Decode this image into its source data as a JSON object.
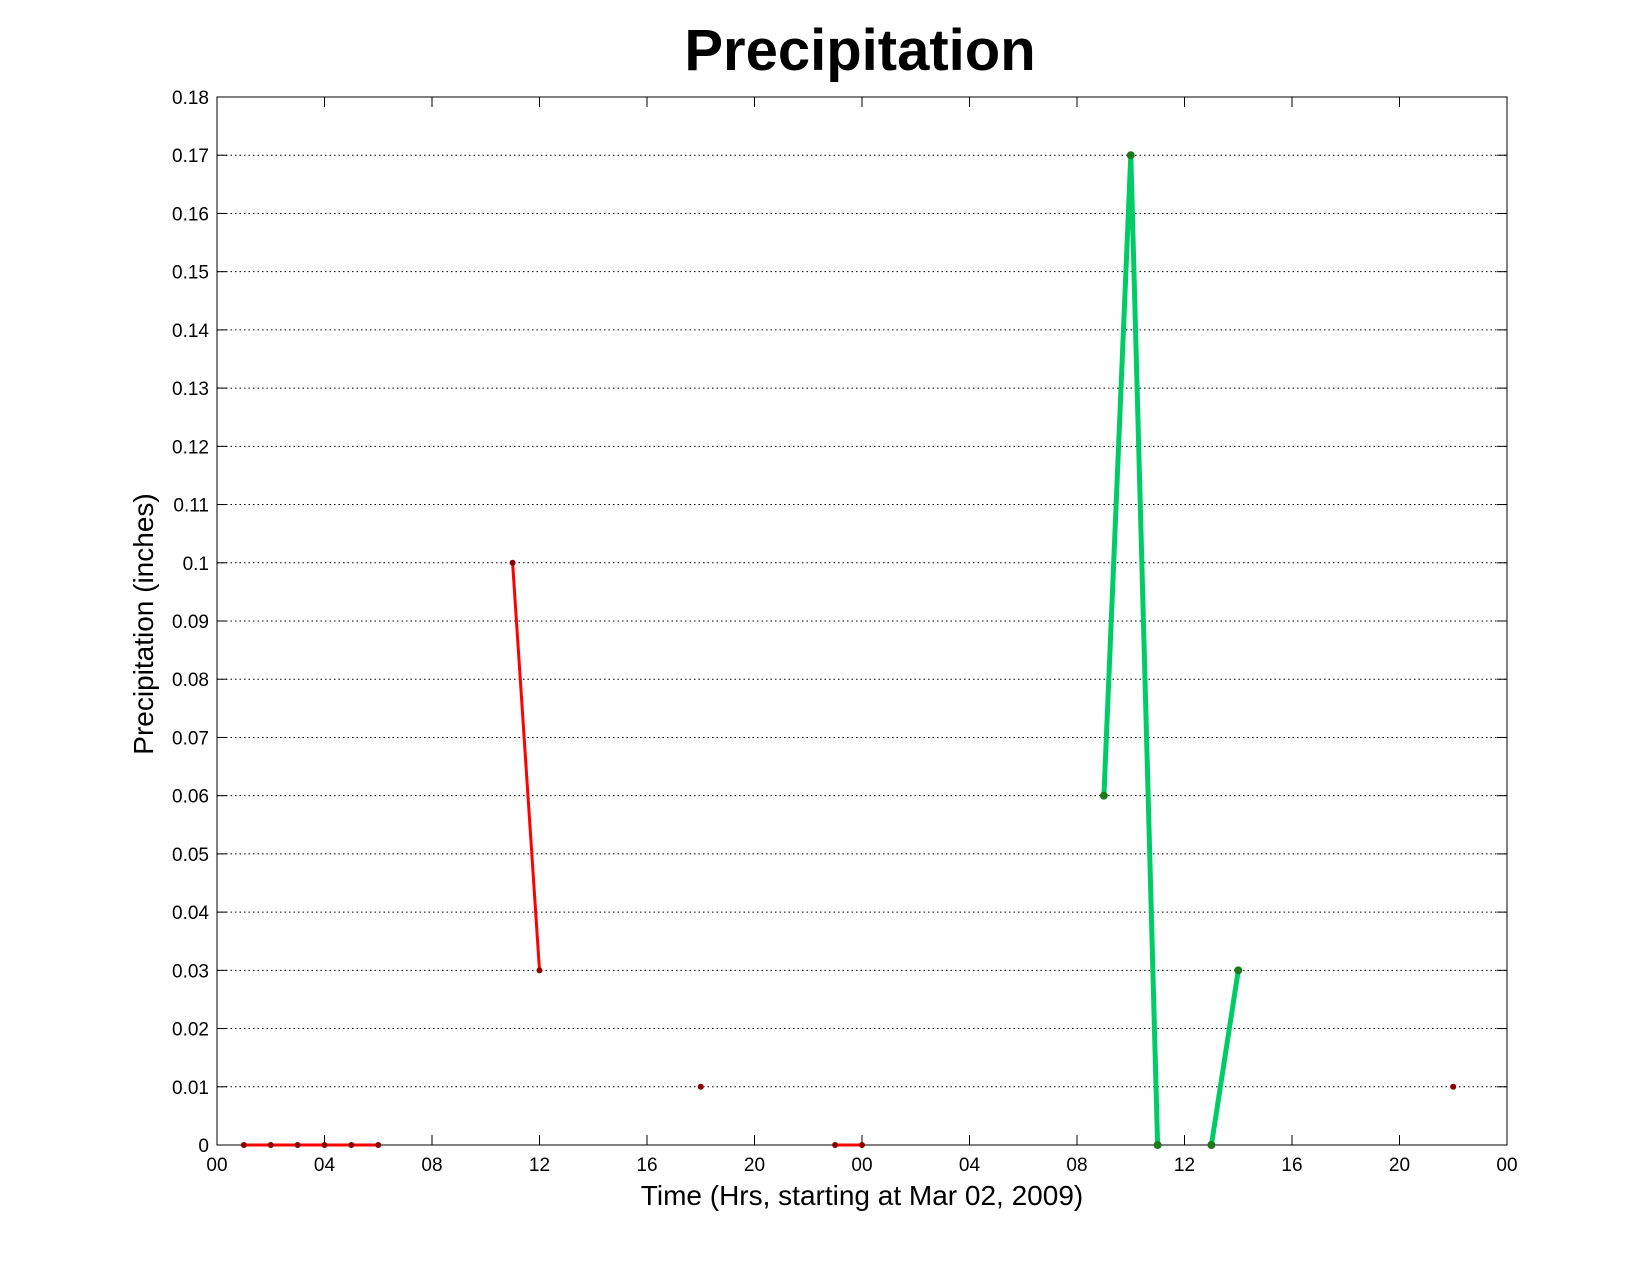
{
  "chart_data": {
    "type": "line",
    "title": "Precipitation",
    "xlabel": "Time (Hrs, starting at Mar 02, 2009)",
    "ylabel": "Precipitation (inches)",
    "xlim": [
      "2009-03-02T00:00",
      "2009-03-04T00:00"
    ],
    "ylim": [
      0,
      0.18
    ],
    "x_tick_labels": [
      "00",
      "04",
      "08",
      "12",
      "16",
      "20",
      "00",
      "04",
      "08",
      "12",
      "16",
      "20",
      "00"
    ],
    "y_tick_labels": [
      "0",
      "0.01",
      "0.02",
      "0.03",
      "0.04",
      "0.05",
      "0.06",
      "0.07",
      "0.08",
      "0.09",
      "0.1",
      "0.11",
      "0.12",
      "0.13",
      "0.14",
      "0.15",
      "0.16",
      "0.17",
      "0.18"
    ],
    "grid": "horizontal dotted",
    "series": [
      {
        "color": "#ff0000",
        "marker_color": "#8b0000",
        "segments": [
          [
            [
              "2009-03-02T01:00",
              0
            ],
            [
              "2009-03-02T02:00",
              0
            ],
            [
              "2009-03-02T03:00",
              0
            ],
            [
              "2009-03-02T04:00",
              0
            ],
            [
              "2009-03-02T05:00",
              0
            ],
            [
              "2009-03-02T06:00",
              0
            ]
          ],
          [
            [
              "2009-03-02T11:00",
              0.1
            ],
            [
              "2009-03-02T12:00",
              0.03
            ]
          ],
          [
            [
              "2009-03-02T18:00",
              0.01
            ]
          ],
          [
            [
              "2009-03-02T23:00",
              0
            ],
            [
              "2009-03-03T00:00",
              0
            ]
          ]
        ]
      },
      {
        "color": "#00cc66",
        "marker_color": "#1f7a1f",
        "segments": [
          [
            [
              "2009-03-03T09:00",
              0.06
            ],
            [
              "2009-03-03T10:00",
              0.17
            ],
            [
              "2009-03-03T11:00",
              0
            ]
          ],
          [
            [
              "2009-03-03T13:00",
              0
            ],
            [
              "2009-03-03T14:00",
              0.03
            ]
          ]
        ]
      },
      {
        "color": "#ff0000",
        "marker_color": "#8b0000",
        "segments": [
          [
            [
              "2009-03-03T22:00",
              0.01
            ]
          ]
        ]
      }
    ]
  }
}
